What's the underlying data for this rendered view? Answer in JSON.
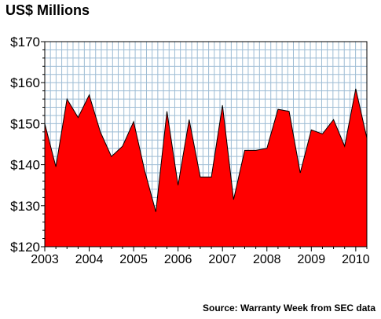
{
  "title": "US$ Millions",
  "source": "Source: Warranty Week from SEC data",
  "colors": {
    "area": "#ff0000",
    "grid": "#9dbcd4",
    "background": "#ffffff",
    "outline": "#000000"
  },
  "chart_data": {
    "type": "area",
    "title": "US$ Millions",
    "xlabel": "",
    "ylabel": "",
    "ylim": [
      120,
      170
    ],
    "yticks": [
      120,
      130,
      140,
      150,
      160,
      170
    ],
    "ytick_labels": [
      "$120",
      "$130",
      "$140",
      "$150",
      "$160",
      "$170"
    ],
    "xtick_labels": [
      "2003",
      "2004",
      "2005",
      "2006",
      "2007",
      "2008",
      "2009",
      "2010"
    ],
    "grid": true,
    "quarters_per_year": 4,
    "x": [
      "2003 Q1",
      "2003 Q2",
      "2003 Q3",
      "2003 Q4",
      "2004 Q1",
      "2004 Q2",
      "2004 Q3",
      "2004 Q4",
      "2005 Q1",
      "2005 Q2",
      "2005 Q3",
      "2005 Q4",
      "2006 Q1",
      "2006 Q2",
      "2006 Q3",
      "2006 Q4",
      "2007 Q1",
      "2007 Q2",
      "2007 Q3",
      "2007 Q4",
      "2008 Q1",
      "2008 Q2",
      "2008 Q3",
      "2008 Q4",
      "2009 Q1",
      "2009 Q2",
      "2009 Q3",
      "2009 Q4",
      "2010 Q1",
      "2010 Q2"
    ],
    "values": [
      150,
      139.5,
      156,
      151.5,
      157,
      148,
      142,
      144.5,
      150.5,
      138.5,
      128.5,
      153,
      135,
      151,
      137,
      137,
      154.5,
      131.5,
      143.5,
      143.5,
      144,
      153.5,
      153,
      138,
      148.5,
      147.5,
      151,
      144.5,
      158.5,
      146.5
    ]
  }
}
